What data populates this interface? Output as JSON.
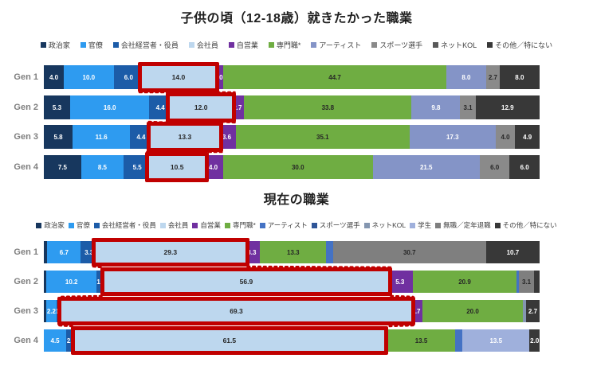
{
  "page": {
    "background": "#FFFFFF",
    "highlight_box_color": "#C00000"
  },
  "chart_data": [
    {
      "type": "bar",
      "stacked": true,
      "orientation": "horizontal",
      "title": "子供の頃（12-18歳）就きたかった職業",
      "xlim": [
        0,
        100
      ],
      "legend_position": "top",
      "grid": false,
      "highlight": {
        "category": "会社員",
        "box_color": "#C00000"
      },
      "legend": [
        {
          "label": "政治家",
          "color": "#17375E",
          "text_color": "#FFFFFF"
        },
        {
          "label": "官僚",
          "color": "#2E9BF0",
          "text_color": "#FFFFFF"
        },
        {
          "label": "会社経営者・役員",
          "color": "#1C5CA8",
          "text_color": "#FFFFFF"
        },
        {
          "label": "会社員",
          "color": "#BDD7EE",
          "text_color": "#262626"
        },
        {
          "label": "自営業",
          "color": "#7030A0",
          "text_color": "#FFFFFF"
        },
        {
          "label": "専門職*",
          "color": "#6FAD42",
          "text_color": "#262626"
        },
        {
          "label": "アーティスト",
          "color": "#8494C7",
          "text_color": "#FFFFFF"
        },
        {
          "label": "スポーツ選手",
          "color": "#8A8A8A",
          "text_color": "#262626"
        },
        {
          "label": "ネットKOL",
          "color": "#595959",
          "text_color": "#FFFFFF"
        },
        {
          "label": "その他／特にない",
          "color": "#383838",
          "text_color": "#FFFFFF"
        }
      ],
      "rows": [
        {
          "label": "Gen 1",
          "segments": [
            {
              "category": "政治家",
              "value": 4.0,
              "label": "4.0"
            },
            {
              "category": "官僚",
              "value": 10.0,
              "label": "10.0"
            },
            {
              "category": "会社経営者・役員",
              "value": 6.0,
              "label": "6.0"
            },
            {
              "category": "会社員",
              "value": 14.0,
              "label": "14.0",
              "highlight": true
            },
            {
              "category": "自営業",
              "value": 2.0,
              "label": "2.0"
            },
            {
              "category": "専門職*",
              "value": 44.7,
              "label": "44.7"
            },
            {
              "category": "アーティスト",
              "value": 8.0,
              "label": "8.0"
            },
            {
              "category": "スポーツ選手",
              "value": 2.7,
              "label": "2.7"
            },
            {
              "category": "その他／特にない",
              "value": 8.0,
              "label": "8.0"
            }
          ]
        },
        {
          "label": "Gen 2",
          "segments": [
            {
              "category": "政治家",
              "value": 5.3,
              "label": "5.3"
            },
            {
              "category": "官僚",
              "value": 16.0,
              "label": "16.0"
            },
            {
              "category": "会社経営者・役員",
              "value": 4.4,
              "label": "4.4"
            },
            {
              "category": "会社員",
              "value": 12.0,
              "label": "12.0",
              "highlight": true
            },
            {
              "category": "自営業",
              "value": 2.7,
              "label": "2.7"
            },
            {
              "category": "専門職*",
              "value": 33.8,
              "label": "33.8"
            },
            {
              "category": "アーティスト",
              "value": 9.8,
              "label": "9.8"
            },
            {
              "category": "スポーツ選手",
              "value": 3.1,
              "label": "3.1"
            },
            {
              "category": "その他／特にない",
              "value": 12.9,
              "label": "12.9"
            }
          ]
        },
        {
          "label": "Gen 3",
          "segments": [
            {
              "category": "政治家",
              "value": 5.8,
              "label": "5.8"
            },
            {
              "category": "官僚",
              "value": 11.6,
              "label": "11.6"
            },
            {
              "category": "会社経営者・役員",
              "value": 4.4,
              "label": "4.4"
            },
            {
              "category": "会社員",
              "value": 13.3,
              "label": "13.3",
              "highlight": true
            },
            {
              "category": "自営業",
              "value": 3.6,
              "label": "3.6"
            },
            {
              "category": "専門職*",
              "value": 35.1,
              "label": "35.1"
            },
            {
              "category": "アーティスト",
              "value": 17.3,
              "label": "17.3"
            },
            {
              "category": "スポーツ選手",
              "value": 4.0,
              "label": "4.0"
            },
            {
              "category": "その他／特にない",
              "value": 4.9,
              "label": "4.9"
            }
          ]
        },
        {
          "label": "Gen 4",
          "segments": [
            {
              "category": "政治家",
              "value": 7.5,
              "label": "7.5"
            },
            {
              "category": "官僚",
              "value": 8.5,
              "label": "8.5"
            },
            {
              "category": "会社経営者・役員",
              "value": 5.5,
              "label": "5.5"
            },
            {
              "category": "会社員",
              "value": 10.5,
              "label": "10.5",
              "highlight": true
            },
            {
              "category": "自営業",
              "value": 4.0,
              "label": "4.0"
            },
            {
              "category": "専門職*",
              "value": 30.0,
              "label": "30.0"
            },
            {
              "category": "アーティスト",
              "value": 21.5,
              "label": "21.5"
            },
            {
              "category": "スポーツ選手",
              "value": 6.0,
              "label": "6.0"
            },
            {
              "category": "その他／特にない",
              "value": 6.0,
              "label": "6.0"
            }
          ]
        }
      ]
    },
    {
      "type": "bar",
      "stacked": true,
      "orientation": "horizontal",
      "title": "現在の職業",
      "xlim": [
        0,
        100
      ],
      "legend_position": "top",
      "grid": false,
      "highlight": {
        "category": "会社員",
        "box_color": "#C00000"
      },
      "legend": [
        {
          "label": "政治家",
          "color": "#17375E",
          "text_color": "#FFFFFF"
        },
        {
          "label": "官僚",
          "color": "#2E9BF0",
          "text_color": "#FFFFFF"
        },
        {
          "label": "会社経営者・役員",
          "color": "#1C5CA8",
          "text_color": "#FFFFFF"
        },
        {
          "label": "会社員",
          "color": "#BDD7EE",
          "text_color": "#262626"
        },
        {
          "label": "自営業",
          "color": "#7030A0",
          "text_color": "#FFFFFF"
        },
        {
          "label": "専門職*",
          "color": "#6FAD42",
          "text_color": "#262626"
        },
        {
          "label": "アーティスト",
          "color": "#4472C4",
          "text_color": "#FFFFFF"
        },
        {
          "label": "スポーツ選手",
          "color": "#2F5597",
          "text_color": "#FFFFFF"
        },
        {
          "label": "ネットKOL",
          "color": "#8496B0",
          "text_color": "#FFFFFF"
        },
        {
          "label": "学生",
          "color": "#9FB0DC",
          "text_color": "#FFFFFF"
        },
        {
          "label": "無職／定年退職",
          "color": "#7F7F7F",
          "text_color": "#262626"
        },
        {
          "label": "その他／特にない",
          "color": "#383838",
          "text_color": "#FFFFFF"
        }
      ],
      "rows": [
        {
          "label": "Gen 1",
          "segments": [
            {
              "category": "政治家",
              "value": 0.7,
              "label": ""
            },
            {
              "category": "官僚",
              "value": 6.7,
              "label": "6.7"
            },
            {
              "category": "会社経営者・役員",
              "value": 3.3,
              "label": "3.3"
            },
            {
              "category": "会社員",
              "value": 29.3,
              "label": "29.3",
              "highlight": true
            },
            {
              "category": "自営業",
              "value": 3.3,
              "label": "3.3"
            },
            {
              "category": "専門職*",
              "value": 13.3,
              "label": "13.3"
            },
            {
              "category": "アーティスト",
              "value": 1.3,
              "label": ""
            },
            {
              "category": "無職／定年退職",
              "value": 30.7,
              "label": "30.7"
            },
            {
              "category": "その他／特にない",
              "value": 10.7,
              "label": "10.7"
            }
          ]
        },
        {
          "label": "Gen 2",
          "segments": [
            {
              "category": "政治家",
              "value": 0.5,
              "label": ""
            },
            {
              "category": "官僚",
              "value": 10.2,
              "label": "10.2"
            },
            {
              "category": "会社経営者・役員",
              "value": 1.8,
              "label": "1.8"
            },
            {
              "category": "会社員",
              "value": 56.9,
              "label": "56.9",
              "highlight": true
            },
            {
              "category": "自営業",
              "value": 5.3,
              "label": "5.3"
            },
            {
              "category": "専門職*",
              "value": 20.9,
              "label": "20.9"
            },
            {
              "category": "アーティスト",
              "value": 0.5,
              "label": ""
            },
            {
              "category": "無職／定年退職",
              "value": 3.1,
              "label": "3.1"
            },
            {
              "category": "その他／特にない",
              "value": 1.1,
              "label": ""
            }
          ]
        },
        {
          "label": "Gen 3",
          "segments": [
            {
              "category": "政治家",
              "value": 0.4,
              "label": ""
            },
            {
              "category": "官僚",
              "value": 2.2,
              "label": "2.2"
            },
            {
              "category": "会社経営者・役員",
              "value": 1.3,
              "label": "1.3"
            },
            {
              "category": "会社員",
              "value": 69.3,
              "label": "69.3",
              "highlight": true
            },
            {
              "category": "自営業",
              "value": 2.7,
              "label": "2.7"
            },
            {
              "category": "専門職*",
              "value": 20.0,
              "label": "20.0"
            },
            {
              "category": "ネットKOL",
              "value": 0.7,
              "label": ""
            },
            {
              "category": "その他／特にない",
              "value": 2.7,
              "label": "2.7"
            }
          ]
        },
        {
          "label": "Gen 4",
          "segments": [
            {
              "category": "官僚",
              "value": 4.5,
              "label": "4.5"
            },
            {
              "category": "会社経営者・役員",
              "value": 2.0,
              "label": "2.0"
            },
            {
              "category": "会社員",
              "value": 61.5,
              "label": "61.5",
              "highlight": true
            },
            {
              "category": "自営業",
              "value": 1.0,
              "label": ""
            },
            {
              "category": "専門職*",
              "value": 13.5,
              "label": "13.5"
            },
            {
              "category": "アーティスト",
              "value": 1.5,
              "label": ""
            },
            {
              "category": "学生",
              "value": 13.5,
              "label": "13.5"
            },
            {
              "category": "その他／特にない",
              "value": 2.0,
              "label": "2.0"
            }
          ]
        }
      ]
    }
  ]
}
